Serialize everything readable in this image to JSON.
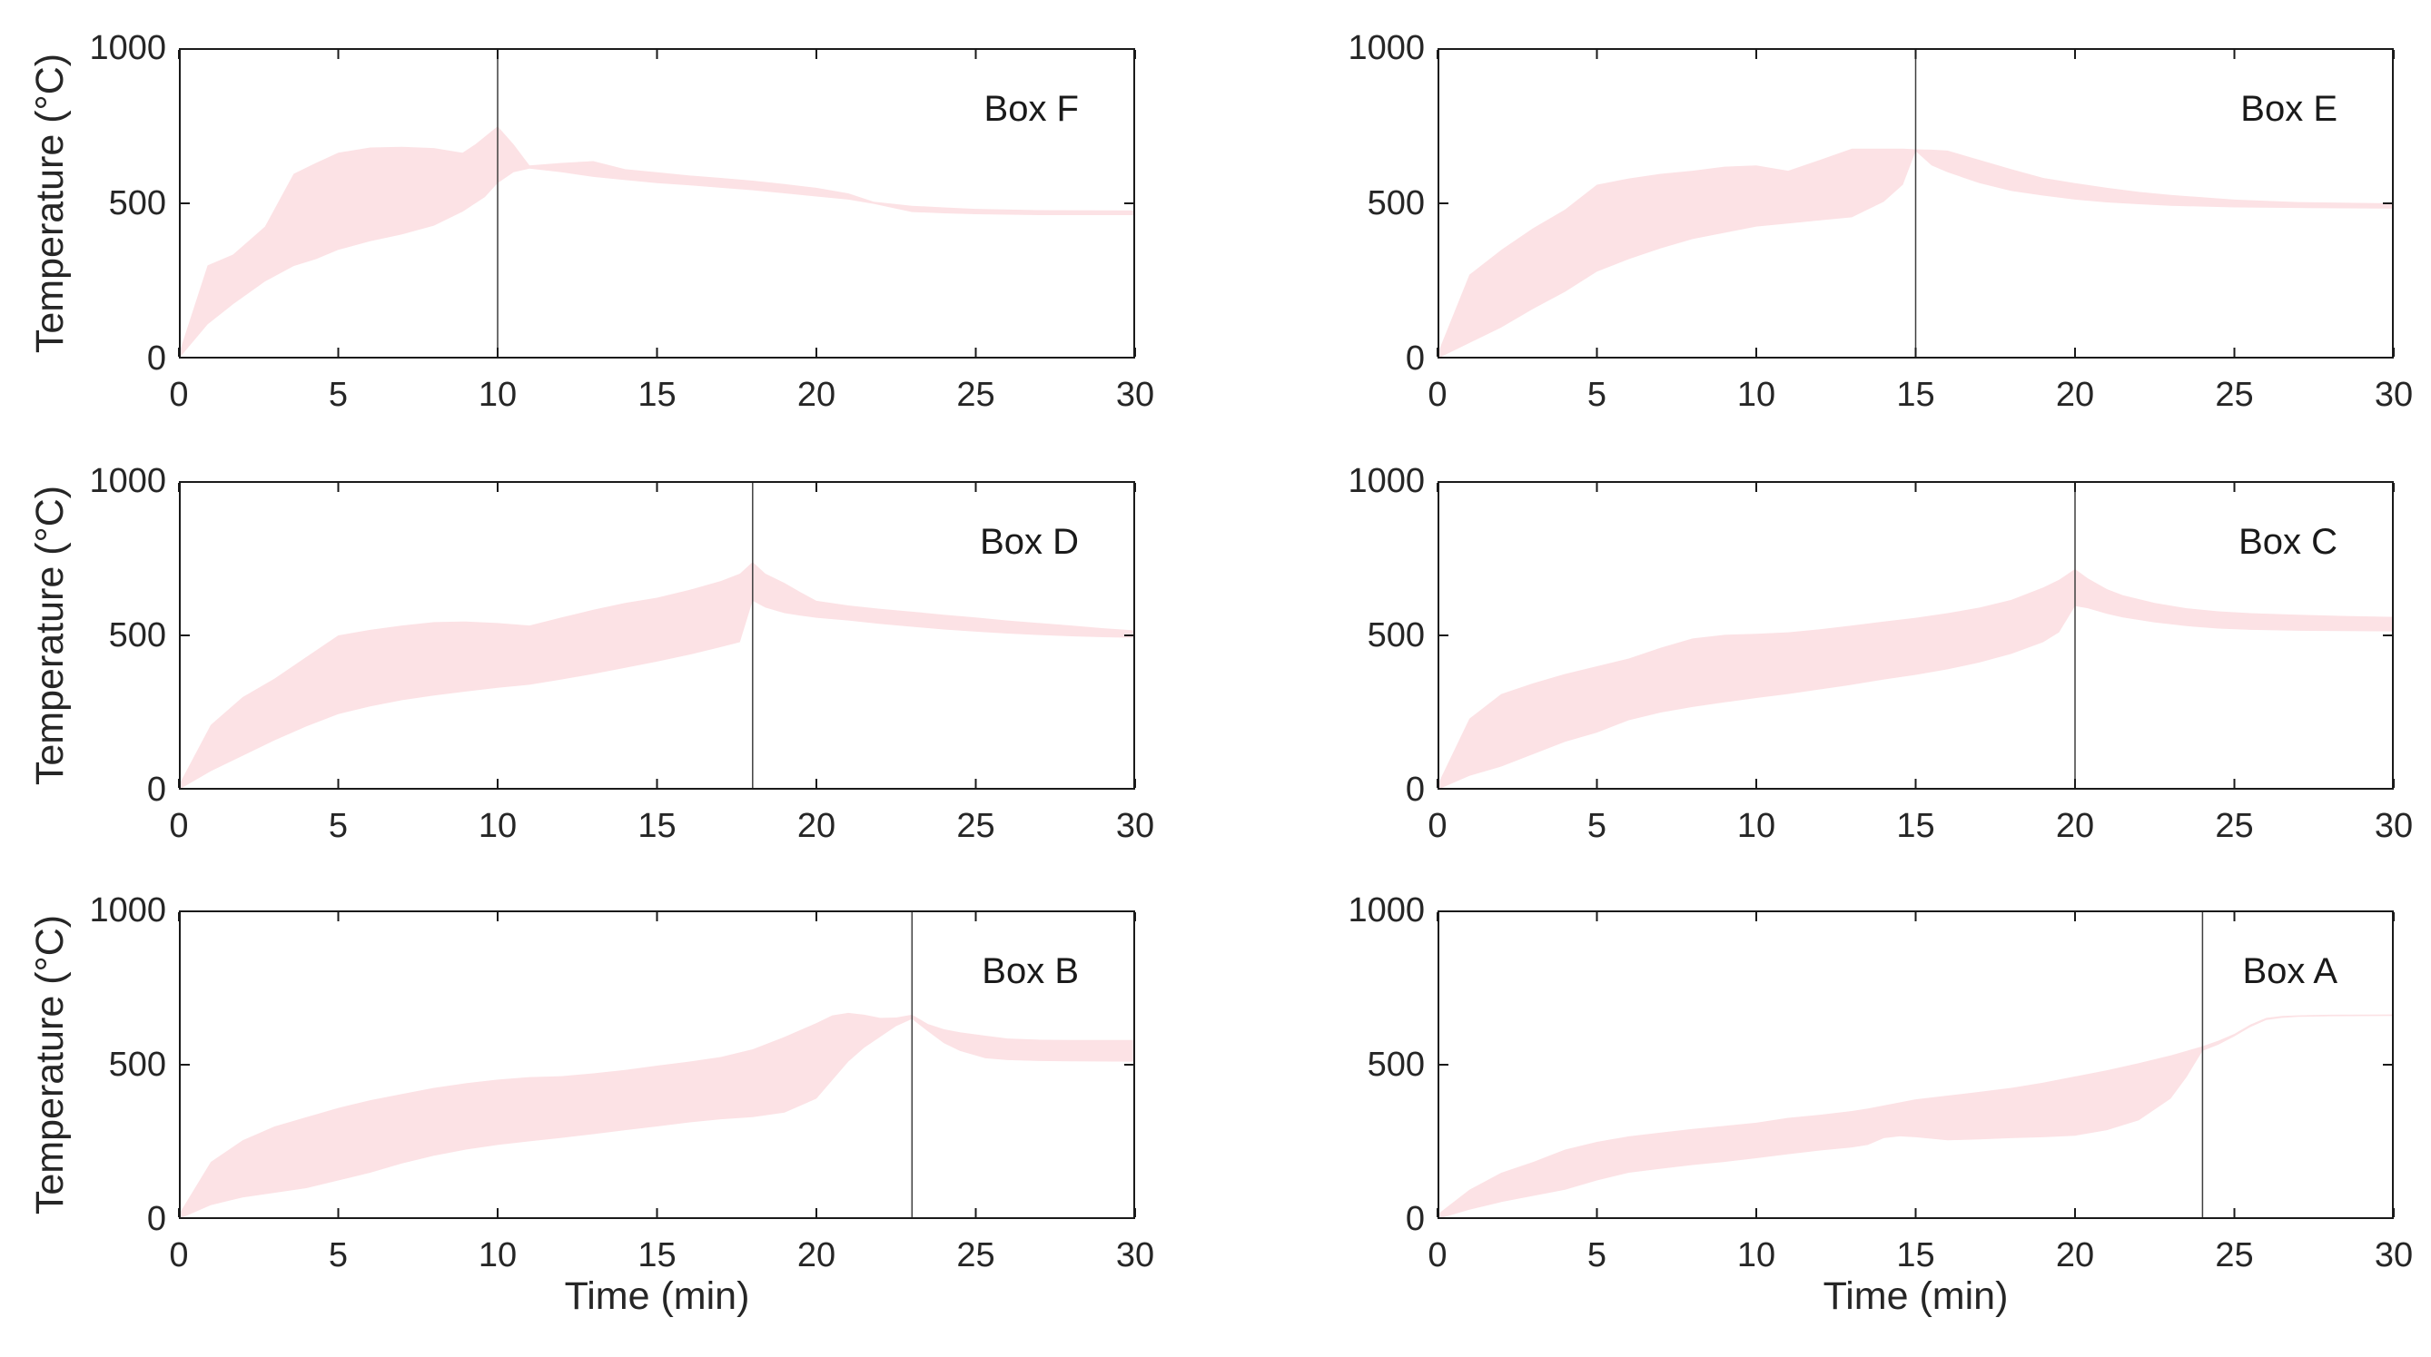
{
  "figure": {
    "y_axis_label": "Temperature (°C)",
    "x_axis_label": "Time (min)",
    "x_ticks": [
      0,
      5,
      10,
      15,
      20,
      25,
      30
    ],
    "y_ticks": [
      0,
      500,
      1000
    ],
    "colors": {
      "background": "#ffffff",
      "band_fill": "#fce2e5",
      "frame": "#1a1a1a",
      "event_line": "#3f3f3f",
      "text": "#262626"
    }
  },
  "chart_data": [
    {
      "id": "box-f",
      "label": "Box F",
      "type": "area",
      "grid": {
        "row": 0,
        "col": 0
      },
      "xlabel": "Time (min)",
      "ylabel": "Temperature (°C)",
      "x_range": [
        0,
        30
      ],
      "y_range": [
        0,
        1000
      ],
      "event_time": 10,
      "legend_position": "none",
      "band": {
        "t": [
          0,
          0.9,
          1.7,
          2.7,
          3.6,
          4.3,
          5,
          6,
          7,
          8,
          8.9,
          9.3,
          9.6,
          10,
          10.5,
          11,
          12,
          13,
          14,
          15,
          16,
          17,
          18,
          19,
          20,
          21,
          21.8,
          23,
          24,
          25,
          27,
          30
        ],
        "upper": [
          15,
          300,
          335,
          425,
          595,
          630,
          663,
          680,
          682,
          678,
          663,
          690,
          715,
          748,
          690,
          622,
          630,
          636,
          610,
          600,
          590,
          582,
          573,
          562,
          550,
          532,
          505,
          492,
          487,
          482,
          478,
          477
        ],
        "lower": [
          0,
          110,
          175,
          248,
          298,
          320,
          350,
          378,
          400,
          428,
          473,
          500,
          520,
          565,
          600,
          612,
          600,
          585,
          575,
          565,
          558,
          550,
          542,
          532,
          522,
          512,
          498,
          472,
          468,
          465,
          462,
          462
        ]
      }
    },
    {
      "id": "box-e",
      "label": "Box E",
      "type": "area",
      "grid": {
        "row": 0,
        "col": 1
      },
      "xlabel": "Time (min)",
      "ylabel": "Temperature (°C)",
      "x_range": [
        0,
        30
      ],
      "y_range": [
        0,
        1000
      ],
      "event_time": 15,
      "legend_position": "none",
      "band": {
        "t": [
          0,
          1,
          2,
          3,
          4,
          5,
          6,
          7,
          8,
          9,
          10,
          11,
          12,
          13,
          14,
          14.6,
          15,
          15.5,
          16,
          17,
          18,
          19,
          20,
          21,
          22,
          23,
          25,
          27,
          30
        ],
        "upper": [
          15,
          270,
          350,
          420,
          480,
          560,
          580,
          595,
          605,
          618,
          622,
          605,
          640,
          676,
          676,
          676,
          674,
          673,
          670,
          640,
          610,
          582,
          565,
          550,
          537,
          527,
          512,
          504,
          500
        ],
        "lower": [
          0,
          50,
          100,
          160,
          215,
          280,
          320,
          355,
          385,
          405,
          425,
          435,
          445,
          455,
          505,
          560,
          668,
          622,
          600,
          565,
          540,
          525,
          512,
          503,
          497,
          492,
          487,
          485,
          483
        ]
      }
    },
    {
      "id": "box-d",
      "label": "Box D",
      "type": "area",
      "grid": {
        "row": 1,
        "col": 0
      },
      "xlabel": "Time (min)",
      "ylabel": "Temperature (°C)",
      "x_range": [
        0,
        30
      ],
      "y_range": [
        0,
        1000
      ],
      "event_time": 18,
      "legend_position": "none",
      "band": {
        "t": [
          0,
          1,
          2,
          3,
          4,
          5,
          6,
          7,
          8,
          9,
          10,
          11,
          12,
          13,
          14,
          15,
          16,
          17,
          17.6,
          18,
          18.4,
          19,
          19.5,
          20,
          21,
          22,
          23,
          24,
          25,
          26,
          27,
          28,
          29,
          30
        ],
        "upper": [
          15,
          210,
          300,
          360,
          430,
          500,
          518,
          532,
          543,
          545,
          540,
          532,
          558,
          583,
          605,
          622,
          647,
          676,
          700,
          738,
          700,
          670,
          640,
          612,
          597,
          586,
          577,
          567,
          558,
          548,
          540,
          532,
          523,
          516
        ],
        "lower": [
          0,
          60,
          110,
          160,
          205,
          245,
          270,
          290,
          305,
          318,
          330,
          340,
          357,
          375,
          395,
          415,
          437,
          462,
          478,
          612,
          590,
          572,
          564,
          557,
          548,
          537,
          528,
          519,
          512,
          506,
          501,
          497,
          494,
          492
        ]
      }
    },
    {
      "id": "box-c",
      "label": "Box C",
      "type": "area",
      "grid": {
        "row": 1,
        "col": 1
      },
      "xlabel": "Time (min)",
      "ylabel": "Temperature (°C)",
      "x_range": [
        0,
        30
      ],
      "y_range": [
        0,
        1000
      ],
      "event_time": 20,
      "legend_position": "none",
      "band": {
        "t": [
          0,
          1,
          2,
          3,
          4,
          5,
          6,
          7,
          8,
          9,
          10,
          11,
          12,
          13,
          14,
          15,
          16,
          17,
          18,
          19,
          19.5,
          20,
          20.4,
          21,
          21.5,
          22.5,
          23.5,
          24.5,
          25.5,
          27,
          28.5,
          30
        ],
        "upper": [
          15,
          230,
          310,
          345,
          375,
          400,
          425,
          460,
          490,
          502,
          505,
          510,
          520,
          532,
          545,
          557,
          572,
          590,
          615,
          655,
          680,
          715,
          685,
          650,
          630,
          605,
          588,
          578,
          572,
          567,
          563,
          560
        ],
        "lower": [
          0,
          45,
          75,
          115,
          155,
          185,
          225,
          250,
          268,
          283,
          297,
          310,
          325,
          340,
          357,
          372,
          390,
          412,
          440,
          478,
          510,
          595,
          588,
          570,
          558,
          542,
          530,
          522,
          518,
          515,
          514,
          513
        ]
      }
    },
    {
      "id": "box-b",
      "label": "Box B",
      "type": "area",
      "grid": {
        "row": 2,
        "col": 0
      },
      "xlabel": "Time (min)",
      "ylabel": "Temperature (°C)",
      "x_range": [
        0,
        30
      ],
      "y_range": [
        0,
        1000
      ],
      "event_time": 23,
      "legend_position": "none",
      "band": {
        "t": [
          0,
          1,
          2,
          3,
          4,
          5,
          6,
          7,
          8,
          9,
          10,
          11,
          12,
          13,
          14,
          15,
          16,
          17,
          18,
          19,
          20,
          20.5,
          21,
          21.5,
          22,
          22.5,
          23,
          23.5,
          24,
          24.5,
          25.3,
          26,
          27,
          28,
          30
        ],
        "upper": [
          15,
          185,
          255,
          300,
          330,
          360,
          385,
          405,
          425,
          440,
          452,
          460,
          463,
          472,
          483,
          497,
          510,
          525,
          550,
          590,
          635,
          660,
          668,
          662,
          652,
          653,
          662,
          632,
          615,
          605,
          594,
          585,
          581,
          580,
          580
        ],
        "lower": [
          0,
          45,
          70,
          85,
          100,
          125,
          150,
          180,
          205,
          225,
          240,
          252,
          263,
          275,
          288,
          300,
          313,
          323,
          330,
          345,
          390,
          450,
          510,
          555,
          590,
          625,
          648,
          608,
          570,
          545,
          521,
          515,
          512,
          511,
          510
        ]
      }
    },
    {
      "id": "box-a",
      "label": "Box A",
      "type": "area",
      "grid": {
        "row": 2,
        "col": 1
      },
      "xlabel": "Time (min)",
      "ylabel": "Temperature (°C)",
      "x_range": [
        0,
        30
      ],
      "y_range": [
        0,
        1000
      ],
      "event_time": 24,
      "legend_position": "none",
      "band": {
        "t": [
          0,
          1,
          2,
          3,
          4,
          5,
          6,
          7,
          8,
          9,
          10,
          11,
          12,
          13,
          13.5,
          14,
          14.5,
          15,
          16,
          17,
          18,
          19,
          20,
          21,
          22,
          23,
          23.5,
          24,
          24.5,
          25,
          25.5,
          26,
          26.5,
          27,
          28,
          30
        ],
        "upper": [
          15,
          95,
          150,
          185,
          225,
          250,
          268,
          280,
          292,
          302,
          312,
          328,
          338,
          350,
          358,
          368,
          378,
          388,
          400,
          412,
          425,
          442,
          462,
          482,
          505,
          530,
          545,
          560,
          578,
          600,
          630,
          652,
          658,
          660,
          662,
          663
        ],
        "lower": [
          0,
          30,
          55,
          75,
          95,
          125,
          150,
          163,
          175,
          185,
          197,
          210,
          222,
          232,
          240,
          262,
          268,
          265,
          255,
          258,
          262,
          265,
          270,
          288,
          320,
          390,
          460,
          545,
          565,
          592,
          622,
          645,
          652,
          655,
          657,
          658
        ]
      }
    }
  ]
}
